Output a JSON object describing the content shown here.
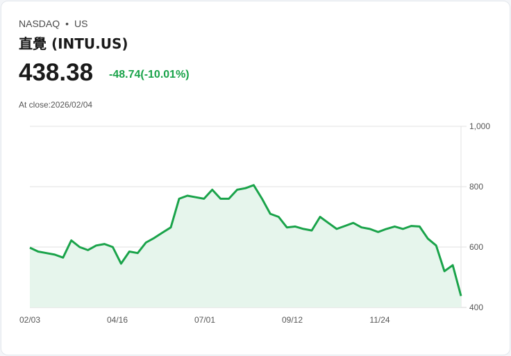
{
  "header": {
    "exchange": "NASDAQ",
    "separator": "•",
    "region": "US",
    "title": "直覺 (INTU.US)",
    "price": "438.38",
    "change": "-48.74(-10.01%)",
    "at_close": "At close:2026/02/04"
  },
  "colors": {
    "line": "#1aa34a",
    "fill": "#e6f5ec",
    "grid": "#e2e2e2"
  },
  "chart_data": {
    "type": "area",
    "title": "直覺 (INTU.US)",
    "xlabel": "",
    "ylabel": "",
    "ylim": [
      400,
      1000
    ],
    "yticks": [
      "1,000",
      "800",
      "600",
      "400"
    ],
    "xticks": [
      "02/03",
      "04/16",
      "07/01",
      "09/12",
      "11/24"
    ],
    "grid": true,
    "legend": null,
    "x": [
      "02/03",
      "02/10",
      "02/18",
      "02/25",
      "03/04",
      "03/11",
      "03/18",
      "03/25",
      "04/01",
      "04/08",
      "04/16",
      "04/23",
      "04/30",
      "05/07",
      "05/14",
      "05/21",
      "05/28",
      "06/04",
      "06/11",
      "06/18",
      "06/25",
      "07/01",
      "07/09",
      "07/16",
      "07/23",
      "07/30",
      "08/06",
      "08/13",
      "08/20",
      "08/27",
      "09/04",
      "09/12",
      "09/19",
      "09/26",
      "10/03",
      "10/10",
      "10/17",
      "10/24",
      "10/31",
      "11/07",
      "11/14",
      "11/21",
      "11/24",
      "12/02",
      "12/09",
      "12/16",
      "12/23",
      "12/31",
      "01/08",
      "01/15",
      "01/22",
      "01/29",
      "02/04"
    ],
    "values": [
      598,
      585,
      580,
      575,
      565,
      622,
      600,
      590,
      605,
      610,
      600,
      545,
      585,
      580,
      615,
      630,
      648,
      665,
      760,
      770,
      765,
      760,
      790,
      760,
      760,
      790,
      795,
      805,
      760,
      710,
      700,
      665,
      668,
      660,
      655,
      700,
      680,
      660,
      670,
      680,
      665,
      660,
      650,
      660,
      668,
      660,
      670,
      668,
      628,
      605,
      520,
      540,
      438
    ]
  }
}
